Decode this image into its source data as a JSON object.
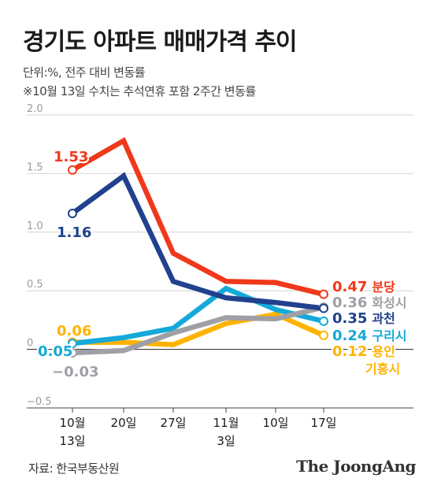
{
  "header": {
    "title": "경기도 아파트 매매가격 추이",
    "subtitle": "단위:%, 전주 대비 변동률",
    "note": "※10월 13일 수치는 추석연휴 포함 2주간 변동률"
  },
  "footer": {
    "source": "자료: 한국부동산원",
    "brand": "The JoongAng"
  },
  "chart_data": {
    "type": "line",
    "categories": [
      [
        "10월",
        "13일"
      ],
      [
        "20일"
      ],
      [
        "27일"
      ],
      [
        "11월",
        "3일"
      ],
      [
        "10일"
      ],
      [
        "17일"
      ]
    ],
    "yticks": [
      "2.0",
      "1.5",
      "1.0",
      "0.5",
      "0",
      "−0.5"
    ],
    "ylim": [
      -0.5,
      2.0
    ],
    "grid": true,
    "legend": "inline-right",
    "series": [
      {
        "name": "분당",
        "color": "#F0381A",
        "values": [
          1.53,
          1.78,
          0.82,
          0.58,
          0.57,
          0.47
        ],
        "start_label": "1.53",
        "end_label": "0.47",
        "end_name": "분당"
      },
      {
        "name": "과천",
        "color": "#21418E",
        "values": [
          1.16,
          1.48,
          0.58,
          0.44,
          0.4,
          0.35
        ],
        "start_label": "1.16",
        "end_label": "0.35",
        "end_name": "과천"
      },
      {
        "name": "화성시",
        "color": "#9EA0A5",
        "values": [
          -0.03,
          -0.01,
          0.14,
          0.27,
          0.26,
          0.36
        ],
        "start_label": "−0.03",
        "end_label": "0.36",
        "end_name": "화성시"
      },
      {
        "name": "구리시",
        "color": "#14A9D9",
        "values": [
          0.05,
          0.1,
          0.18,
          0.52,
          0.34,
          0.24
        ],
        "start_label": "0.05",
        "end_label": "0.24",
        "end_name": "구리시"
      },
      {
        "name": "용인 기흥시",
        "color": "#FFB300",
        "values": [
          0.06,
          0.06,
          0.04,
          0.22,
          0.3,
          0.12
        ],
        "start_label": "0.06",
        "end_label": "0.12",
        "end_name": "용인 기흥시"
      }
    ]
  }
}
